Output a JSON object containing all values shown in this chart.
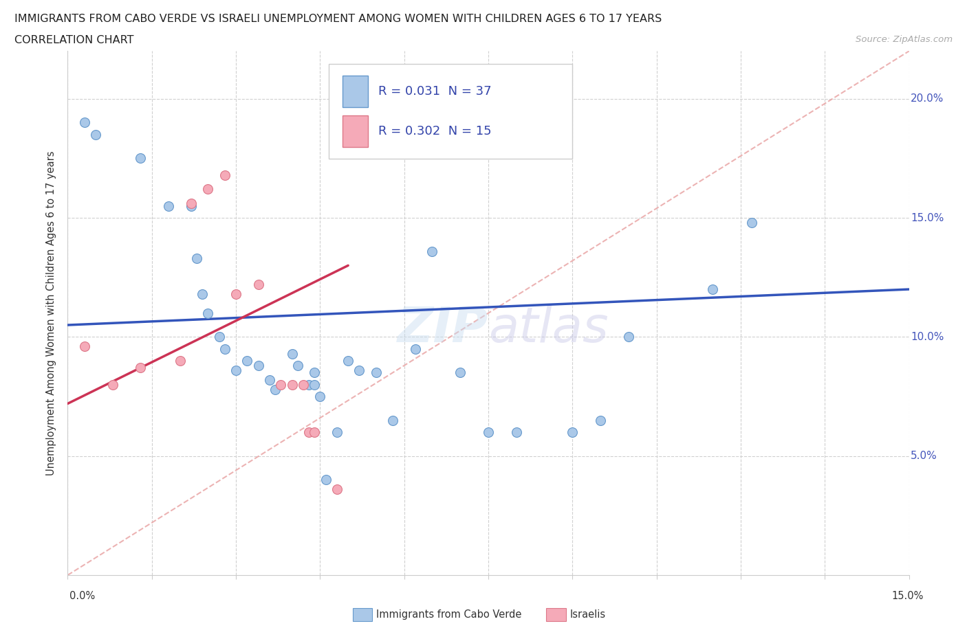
{
  "title": "IMMIGRANTS FROM CABO VERDE VS ISRAELI UNEMPLOYMENT AMONG WOMEN WITH CHILDREN AGES 6 TO 17 YEARS",
  "subtitle": "CORRELATION CHART",
  "source": "Source: ZipAtlas.com",
  "ylabel": "Unemployment Among Women with Children Ages 6 to 17 years",
  "xlim": [
    0.0,
    0.15
  ],
  "ylim": [
    0.0,
    0.22
  ],
  "R_blue": 0.031,
  "N_blue": 37,
  "R_pink": 0.302,
  "N_pink": 15,
  "cabo_verde_x": [
    0.003,
    0.005,
    0.013,
    0.018,
    0.022,
    0.023,
    0.024,
    0.025,
    0.027,
    0.028,
    0.03,
    0.032,
    0.034,
    0.036,
    0.037,
    0.04,
    0.041,
    0.043,
    0.044,
    0.044,
    0.045,
    0.046,
    0.048,
    0.05,
    0.052,
    0.055,
    0.058,
    0.062,
    0.065,
    0.07,
    0.075,
    0.08,
    0.09,
    0.095,
    0.1,
    0.115,
    0.122
  ],
  "cabo_verde_y": [
    0.19,
    0.185,
    0.175,
    0.155,
    0.155,
    0.133,
    0.118,
    0.11,
    0.1,
    0.095,
    0.086,
    0.09,
    0.088,
    0.082,
    0.078,
    0.093,
    0.088,
    0.08,
    0.085,
    0.08,
    0.075,
    0.04,
    0.06,
    0.09,
    0.086,
    0.085,
    0.065,
    0.095,
    0.136,
    0.085,
    0.06,
    0.06,
    0.06,
    0.065,
    0.1,
    0.12,
    0.148
  ],
  "israelis_x": [
    0.003,
    0.008,
    0.013,
    0.02,
    0.022,
    0.025,
    0.028,
    0.03,
    0.034,
    0.038,
    0.04,
    0.042,
    0.043,
    0.044,
    0.048
  ],
  "israelis_y": [
    0.096,
    0.08,
    0.087,
    0.09,
    0.156,
    0.162,
    0.168,
    0.118,
    0.122,
    0.08,
    0.08,
    0.08,
    0.06,
    0.06,
    0.036
  ],
  "cabo_verde_color": "#aac8e8",
  "israelis_color": "#f5aab8",
  "cabo_verde_edge": "#6699cc",
  "israelis_edge": "#dd7788",
  "trend_blue_color": "#3355bb",
  "trend_pink_color": "#cc3355",
  "diagonal_color": "#e8a0a0",
  "background_color": "#ffffff",
  "grid_color": "#d0d0d0",
  "y_ticks": [
    0.05,
    0.1,
    0.15,
    0.2
  ],
  "legend_blue_color": "#aac8e8",
  "legend_pink_color": "#f5aab8"
}
